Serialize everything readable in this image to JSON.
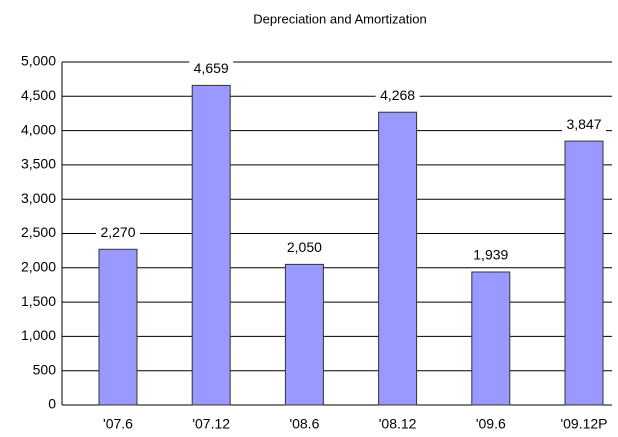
{
  "chart_data": {
    "type": "bar",
    "title": "Depreciation and Amortization",
    "categories": [
      "'07.6",
      "'07.12",
      "'08.6",
      "'08.12",
      "'09.6",
      "'09.12P"
    ],
    "values": [
      2270,
      4659,
      2050,
      4268,
      1939,
      3847
    ],
    "value_labels": [
      "2,270",
      "4,659",
      "2,050",
      "4,268",
      "1,939",
      "3,847"
    ],
    "color": "#9999ff",
    "ylim": [
      0,
      5000
    ],
    "yticks": [
      0,
      500,
      {
        "value": 1000,
        "label": "1,000"
      },
      {
        "value": 1500,
        "label": "1,500"
      },
      {
        "value": 2000,
        "label": "2,000"
      },
      {
        "value": 2500,
        "label": "2,500"
      },
      {
        "value": 3000,
        "label": "3,000"
      },
      {
        "value": 3500,
        "label": "3,500"
      },
      {
        "value": 4000,
        "label": "4,000"
      },
      {
        "value": 4500,
        "label": "4,500"
      },
      {
        "value": 5000,
        "label": "5,000"
      }
    ],
    "grid": true
  }
}
